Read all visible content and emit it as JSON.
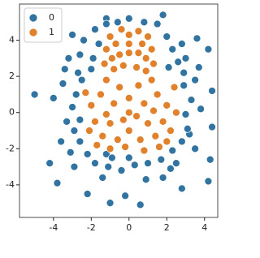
{
  "chart_data": {
    "type": "scatter",
    "xlim": [
      -5.8,
      4.7
    ],
    "ylim": [
      -5.8,
      6.0
    ],
    "xticks": [
      -4,
      -2,
      0,
      2,
      4
    ],
    "yticks": [
      -4,
      -2,
      0,
      2,
      4
    ],
    "grid": false,
    "legend": "upper left",
    "series": [
      {
        "name": "0",
        "color": "#3274a1",
        "x": [
          -5,
          -4.2,
          -3.8,
          -2.2,
          -1,
          0.6,
          -0.2,
          4.3,
          4.2,
          2.8,
          1.8,
          4.2,
          3.6,
          -1.2,
          0,
          1.8,
          -3,
          -3.2,
          -3.5,
          -4.0,
          4.4,
          4.4,
          3.8,
          3.2,
          -1.8,
          -1.6,
          -1.9,
          -2.0,
          -1.2,
          1.5,
          2.0,
          2.3,
          2.6,
          2.9,
          2.1,
          -0.6,
          0.8,
          -2.4,
          -2.6,
          2.8,
          3.0,
          -2.7,
          -2.5,
          -2.8,
          -3.0,
          -2.6,
          -2.9,
          -2.6,
          -2.2,
          -1.8,
          -1.1,
          -0.4,
          0.3,
          1.0,
          1.7,
          2.3,
          2.8,
          3.1,
          3.0,
          3.3,
          2.9,
          3.5,
          -3.3,
          -3.6,
          -3.1,
          -2.9,
          -1.4,
          0.9,
          2.2,
          3.5,
          3.7,
          -3.4,
          -1.2,
          2.5,
          -0.9,
          0.0
        ],
        "values": [
          1,
          -2.8,
          -3.9,
          -4.5,
          -5,
          -5.1,
          -4.6,
          -2.6,
          -3.8,
          -4.2,
          -3.6,
          3.5,
          4.1,
          5.2,
          5.2,
          5.4,
          4.3,
          3.0,
          1.6,
          0.8,
          1.2,
          -0.8,
          0.2,
          -1.2,
          4.6,
          3.8,
          3.0,
          2.4,
          4.9,
          4.9,
          4.2,
          3.5,
          2.8,
          2.2,
          2.5,
          5.0,
          5.0,
          4.0,
          3.2,
          3.8,
          3.0,
          2.2,
          1.8,
          1.0,
          0.3,
          -0.4,
          -1.0,
          -1.6,
          -2.3,
          -2.8,
          -3.0,
          -3.2,
          -2.9,
          -2.8,
          -2.6,
          -2.1,
          -1.6,
          -0.9,
          -0.1,
          0.7,
          1.5,
          1.8,
          -0.5,
          -1.6,
          -2.2,
          -3.0,
          -3.6,
          -3.7,
          -3.1,
          -2.0,
          2.5,
          2.4,
          -2.3,
          -2.8,
          -2.5,
          -2.5
        ]
      },
      {
        "name": "1",
        "color": "#e1812c",
        "x": [
          0,
          -0.7,
          0.7,
          -0.9,
          0.9,
          0,
          -0.4,
          0.5,
          -1.2,
          1.2,
          -0.3,
          0.4,
          0,
          -0.5,
          0.5,
          1.0,
          -1.0,
          -0.8,
          0.9,
          1.3,
          -1.3,
          0,
          -0.8,
          0.8,
          -1.5,
          1.5,
          -0.5,
          0.5,
          -1.2,
          1.2,
          -2.0,
          2.0,
          -1.8,
          1.8,
          -1.0,
          1.0,
          0,
          -0.6,
          0.6,
          -1.4,
          1.4,
          -2.1,
          2.2,
          -0.2,
          0.8,
          1.6,
          -1.0,
          2.5,
          -2.3,
          2.4,
          0,
          -0.3,
          0.4,
          -1.2,
          1.3,
          2.0,
          -1.7
        ],
        "values": [
          3.3,
          3.8,
          3.8,
          3.0,
          3.0,
          4.3,
          4.6,
          4.5,
          3.5,
          3.5,
          2.6,
          2.5,
          3.8,
          3.2,
          3.3,
          4.2,
          4.2,
          2.4,
          2.3,
          2.7,
          2.7,
          0,
          0.5,
          0.5,
          1.0,
          1.0,
          1.4,
          1.5,
          1.8,
          1.8,
          0.4,
          0.4,
          -0.5,
          -0.5,
          -0.6,
          -0.6,
          -1.0,
          -1.5,
          -1.5,
          -1.3,
          -1.3,
          -1.0,
          -1.0,
          -1.9,
          -2.1,
          -1.9,
          -2.0,
          0.0,
          1.1,
          1.4,
          0.8,
          -0.4,
          -0.2,
          -0.1,
          0.1,
          -1.6,
          -1.8
        ]
      }
    ]
  }
}
